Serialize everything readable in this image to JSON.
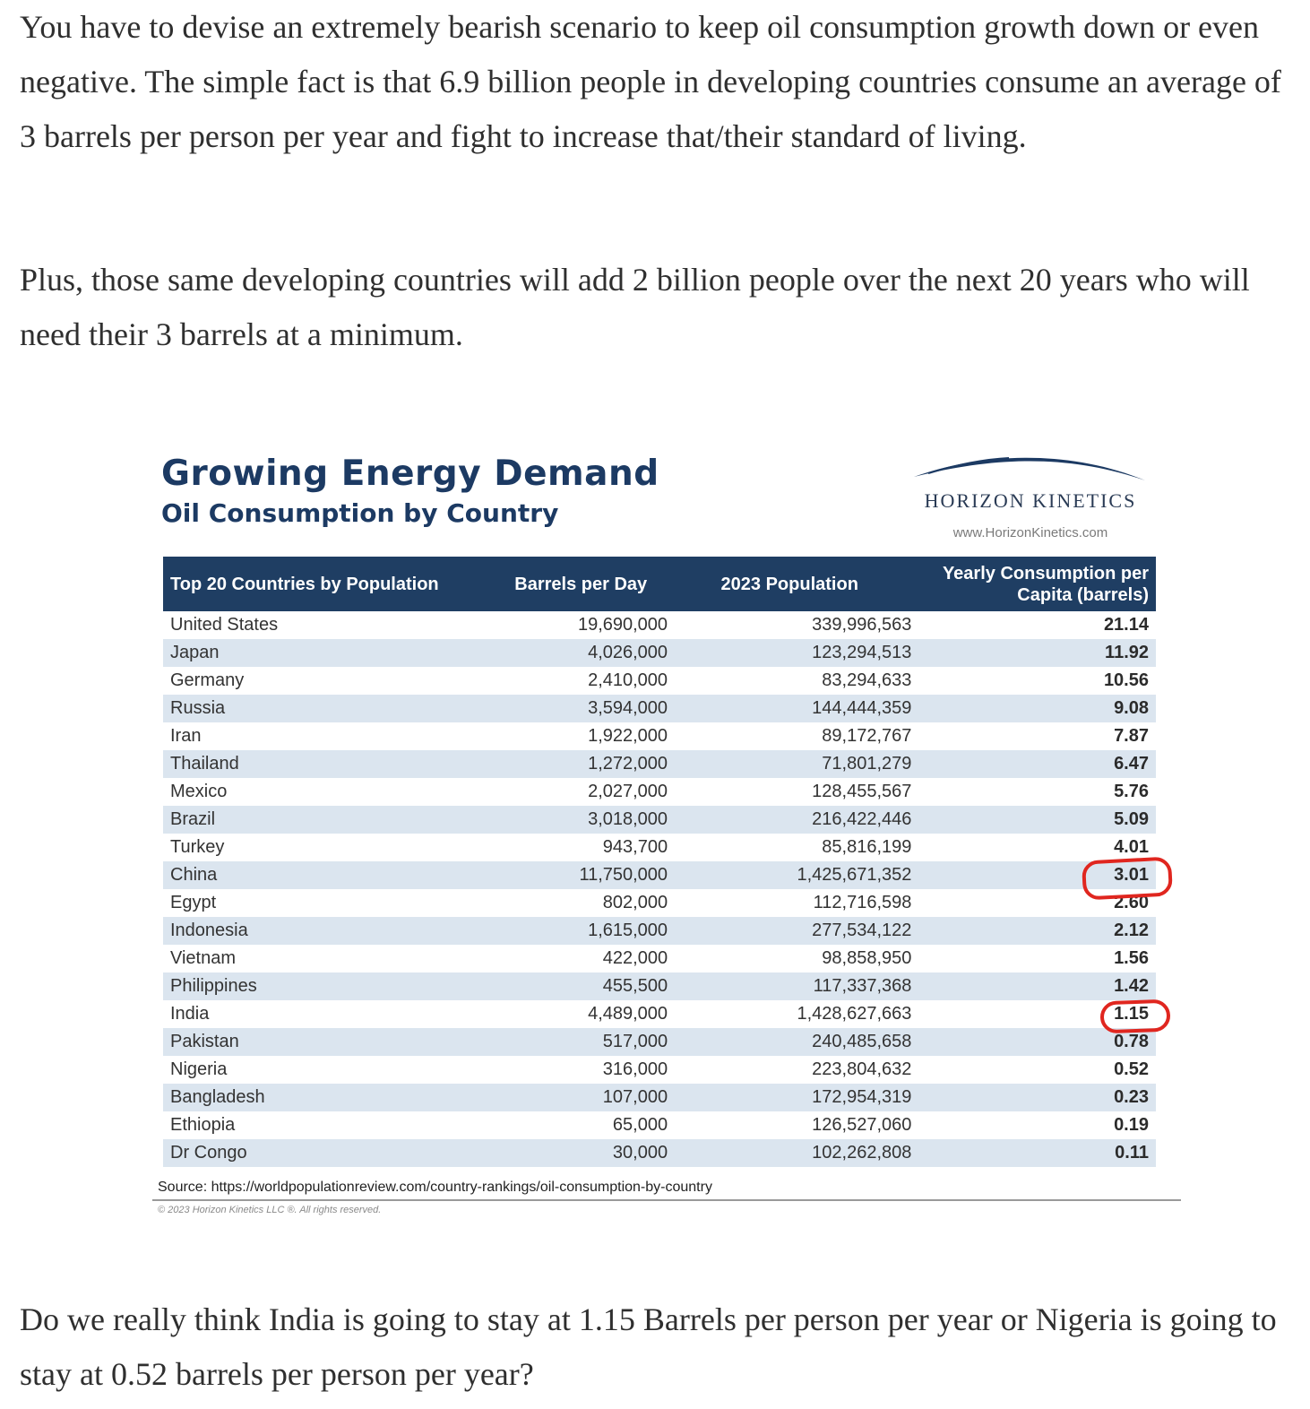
{
  "article": {
    "paragraph_1": "You have to devise an extremely bearish scenario to keep oil consumption growth down or even negative. The simple fact is that 6.9 billion people in developing countries consume an average of 3 barrels per person per year and fight to increase that/their standard of living.",
    "paragraph_2": "Plus, those same developing countries will add 2 billion people over the next 20 years who will need their 3 barrels at a minimum.",
    "paragraph_3": "Do we really think India is going to stay at 1.15 Barrels per person per year or Nigeria is going to stay at 0.52 barrels per person per year?"
  },
  "figure": {
    "title": "Growing Energy Demand",
    "subtitle": "Oil Consumption by Country",
    "logo_name": "HORIZON KINETICS",
    "logo_url": "www.HorizonKinetics.com",
    "logo_color": "#1c3a63",
    "header_color": "#1f3e63",
    "stripe_color": "#dbe5ef",
    "highlight_color": "#e0261f",
    "highlighted_countries": [
      "China",
      "India"
    ],
    "source": "Source:  https://worldpopulationreview.com/country-rankings/oil-consumption-by-country",
    "copyright": "© 2023 Horizon Kinetics LLC ®.  All rights reserved.",
    "table": {
      "columns": [
        "Top 20 Countries by Population",
        "Barrels per Day",
        "2023 Population",
        "Yearly Consumption per Capita (barrels)"
      ],
      "rows": [
        [
          "United States",
          "19,690,000",
          "339,996,563",
          "21.14"
        ],
        [
          "Japan",
          "4,026,000",
          "123,294,513",
          "11.92"
        ],
        [
          "Germany",
          "2,410,000",
          "83,294,633",
          "10.56"
        ],
        [
          "Russia",
          "3,594,000",
          "144,444,359",
          "9.08"
        ],
        [
          "Iran",
          "1,922,000",
          "89,172,767",
          "7.87"
        ],
        [
          "Thailand",
          "1,272,000",
          "71,801,279",
          "6.47"
        ],
        [
          "Mexico",
          "2,027,000",
          "128,455,567",
          "5.76"
        ],
        [
          "Brazil",
          "3,018,000",
          "216,422,446",
          "5.09"
        ],
        [
          "Turkey",
          "943,700",
          "85,816,199",
          "4.01"
        ],
        [
          "China",
          "11,750,000",
          "1,425,671,352",
          "3.01"
        ],
        [
          "Egypt",
          "802,000",
          "112,716,598",
          "2.60"
        ],
        [
          "Indonesia",
          "1,615,000",
          "277,534,122",
          "2.12"
        ],
        [
          "Vietnam",
          "422,000",
          "98,858,950",
          "1.56"
        ],
        [
          "Philippines",
          "455,500",
          "117,337,368",
          "1.42"
        ],
        [
          "India",
          "4,489,000",
          "1,428,627,663",
          "1.15"
        ],
        [
          "Pakistan",
          "517,000",
          "240,485,658",
          "0.78"
        ],
        [
          "Nigeria",
          "316,000",
          "223,804,632",
          "0.52"
        ],
        [
          "Bangladesh",
          "107,000",
          "172,954,319",
          "0.23"
        ],
        [
          "Ethiopia",
          "65,000",
          "126,527,060",
          "0.19"
        ],
        [
          "Dr Congo",
          "30,000",
          "102,262,808",
          "0.11"
        ]
      ]
    }
  }
}
